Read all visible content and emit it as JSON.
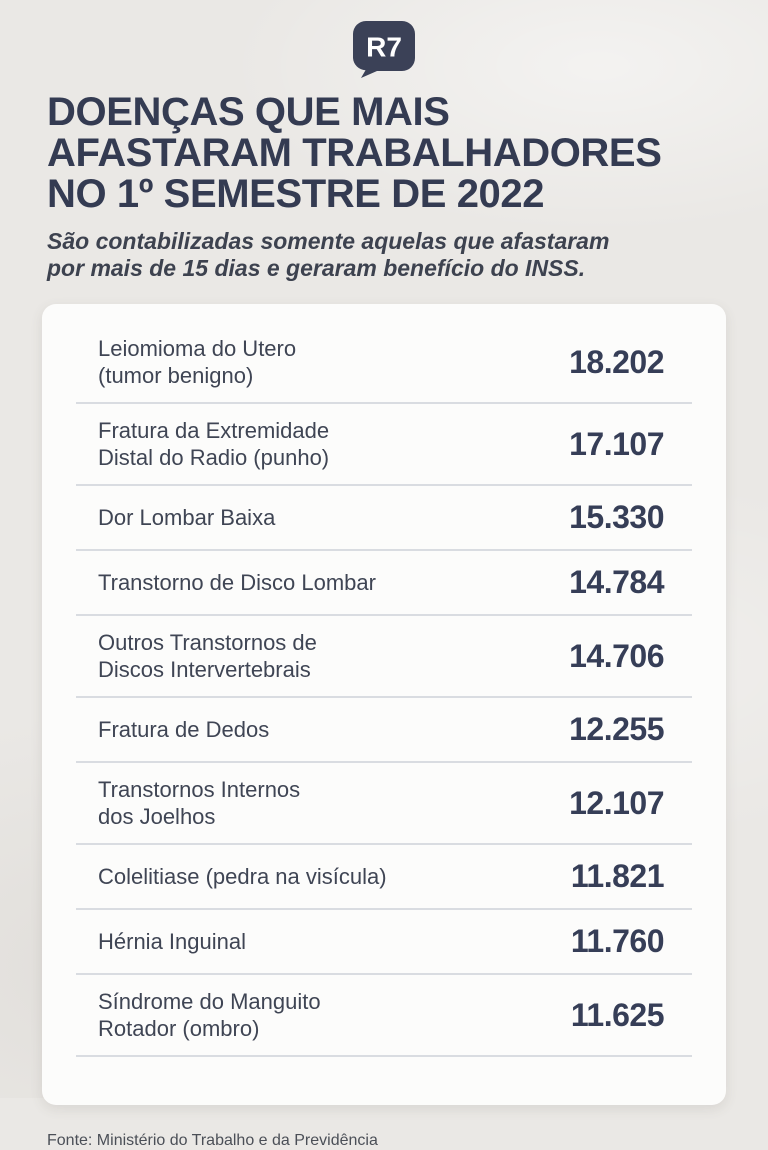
{
  "brand": {
    "logo_text": "R7",
    "logo_color": "#3b4157"
  },
  "header": {
    "title_lines": [
      "DOENÇAS QUE MAIS",
      "AFASTARAM TRABALHADORES",
      "NO 1º SEMESTRE DE 2022"
    ],
    "subtitle_lines": [
      "São contabilizadas somente aquelas que afastaram",
      "por mais de 15 dias e geraram benefício do INSS."
    ]
  },
  "table": {
    "rows": [
      {
        "disease": "Leiomioma do Utero\n(tumor benigno)",
        "value": "18.202"
      },
      {
        "disease": "Fratura da Extremidade\nDistal do Radio (punho)",
        "value": "17.107"
      },
      {
        "disease": "Dor Lombar Baixa",
        "value": "15.330"
      },
      {
        "disease": "Transtorno de Disco Lombar",
        "value": "14.784"
      },
      {
        "disease": "Outros Transtornos de\nDiscos Intervertebrais",
        "value": "14.706"
      },
      {
        "disease": "Fratura de Dedos",
        "value": "12.255"
      },
      {
        "disease": "Transtornos Internos\ndos Joelhos",
        "value": "12.107"
      },
      {
        "disease": "Colelitiase (pedra na visícula)",
        "value": "11.821"
      },
      {
        "disease": "Hérnia Inguinal",
        "value": "11.760"
      },
      {
        "disease": "Síndrome do Manguito\nRotador (ombro)",
        "value": "11.625"
      }
    ]
  },
  "footer": {
    "source": "Fonte: Ministério do Trabalho e da Previdência"
  },
  "colors": {
    "background": "#eae8e5",
    "card": "#fcfcfb",
    "title": "#343b52",
    "label": "#3f4554",
    "number": "#363e57",
    "divider": "#d9dce1",
    "logo": "#3b4157"
  },
  "chart_data": {
    "type": "table",
    "title": "Doenças que mais afastaram trabalhadores no 1º semestre de 2022",
    "subtitle": "São contabilizadas somente aquelas que afastaram por mais de 15 dias e geraram benefício do INSS.",
    "categories": [
      "Leiomioma do Utero (tumor benigno)",
      "Fratura da Extremidade Distal do Radio (punho)",
      "Dor Lombar Baixa",
      "Transtorno de Disco Lombar",
      "Outros Transtornos de Discos Intervertebrais",
      "Fratura de Dedos",
      "Transtornos Internos dos Joelhos",
      "Colelitiase (pedra na visícula)",
      "Hérnia Inguinal",
      "Síndrome do Manguito Rotador (ombro)"
    ],
    "values": [
      18202,
      17107,
      15330,
      14784,
      14706,
      12255,
      12107,
      11821,
      11760,
      11625
    ],
    "value_format": "pt-BR thousands with dot",
    "source": "Fonte: Ministério do Trabalho e da Previdência"
  }
}
